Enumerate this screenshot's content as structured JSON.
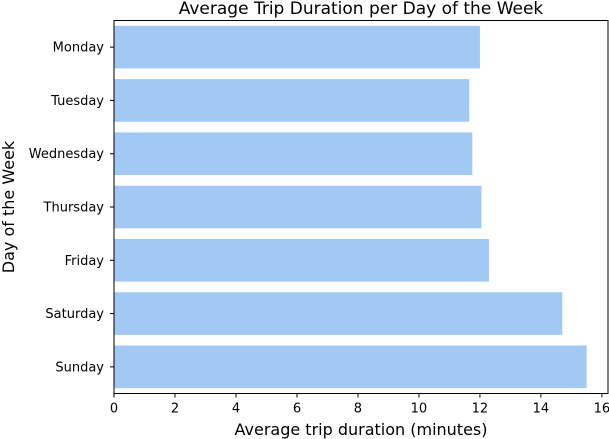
{
  "chart_data": {
    "type": "bar",
    "orientation": "horizontal",
    "title": "Average Trip Duration per Day of the Week",
    "xlabel": "Average trip duration (minutes)",
    "ylabel": "Day of the Week",
    "categories": [
      "Monday",
      "Tuesday",
      "Wednesday",
      "Thursday",
      "Friday",
      "Saturday",
      "Sunday"
    ],
    "values": [
      12.0,
      11.65,
      11.75,
      12.05,
      12.3,
      14.7,
      15.5
    ],
    "xlim": [
      0,
      16.2
    ],
    "xticks": [
      0,
      2,
      4,
      6,
      8,
      10,
      12,
      14,
      16
    ],
    "grid": false,
    "bar_color": "#a1c9f4"
  }
}
